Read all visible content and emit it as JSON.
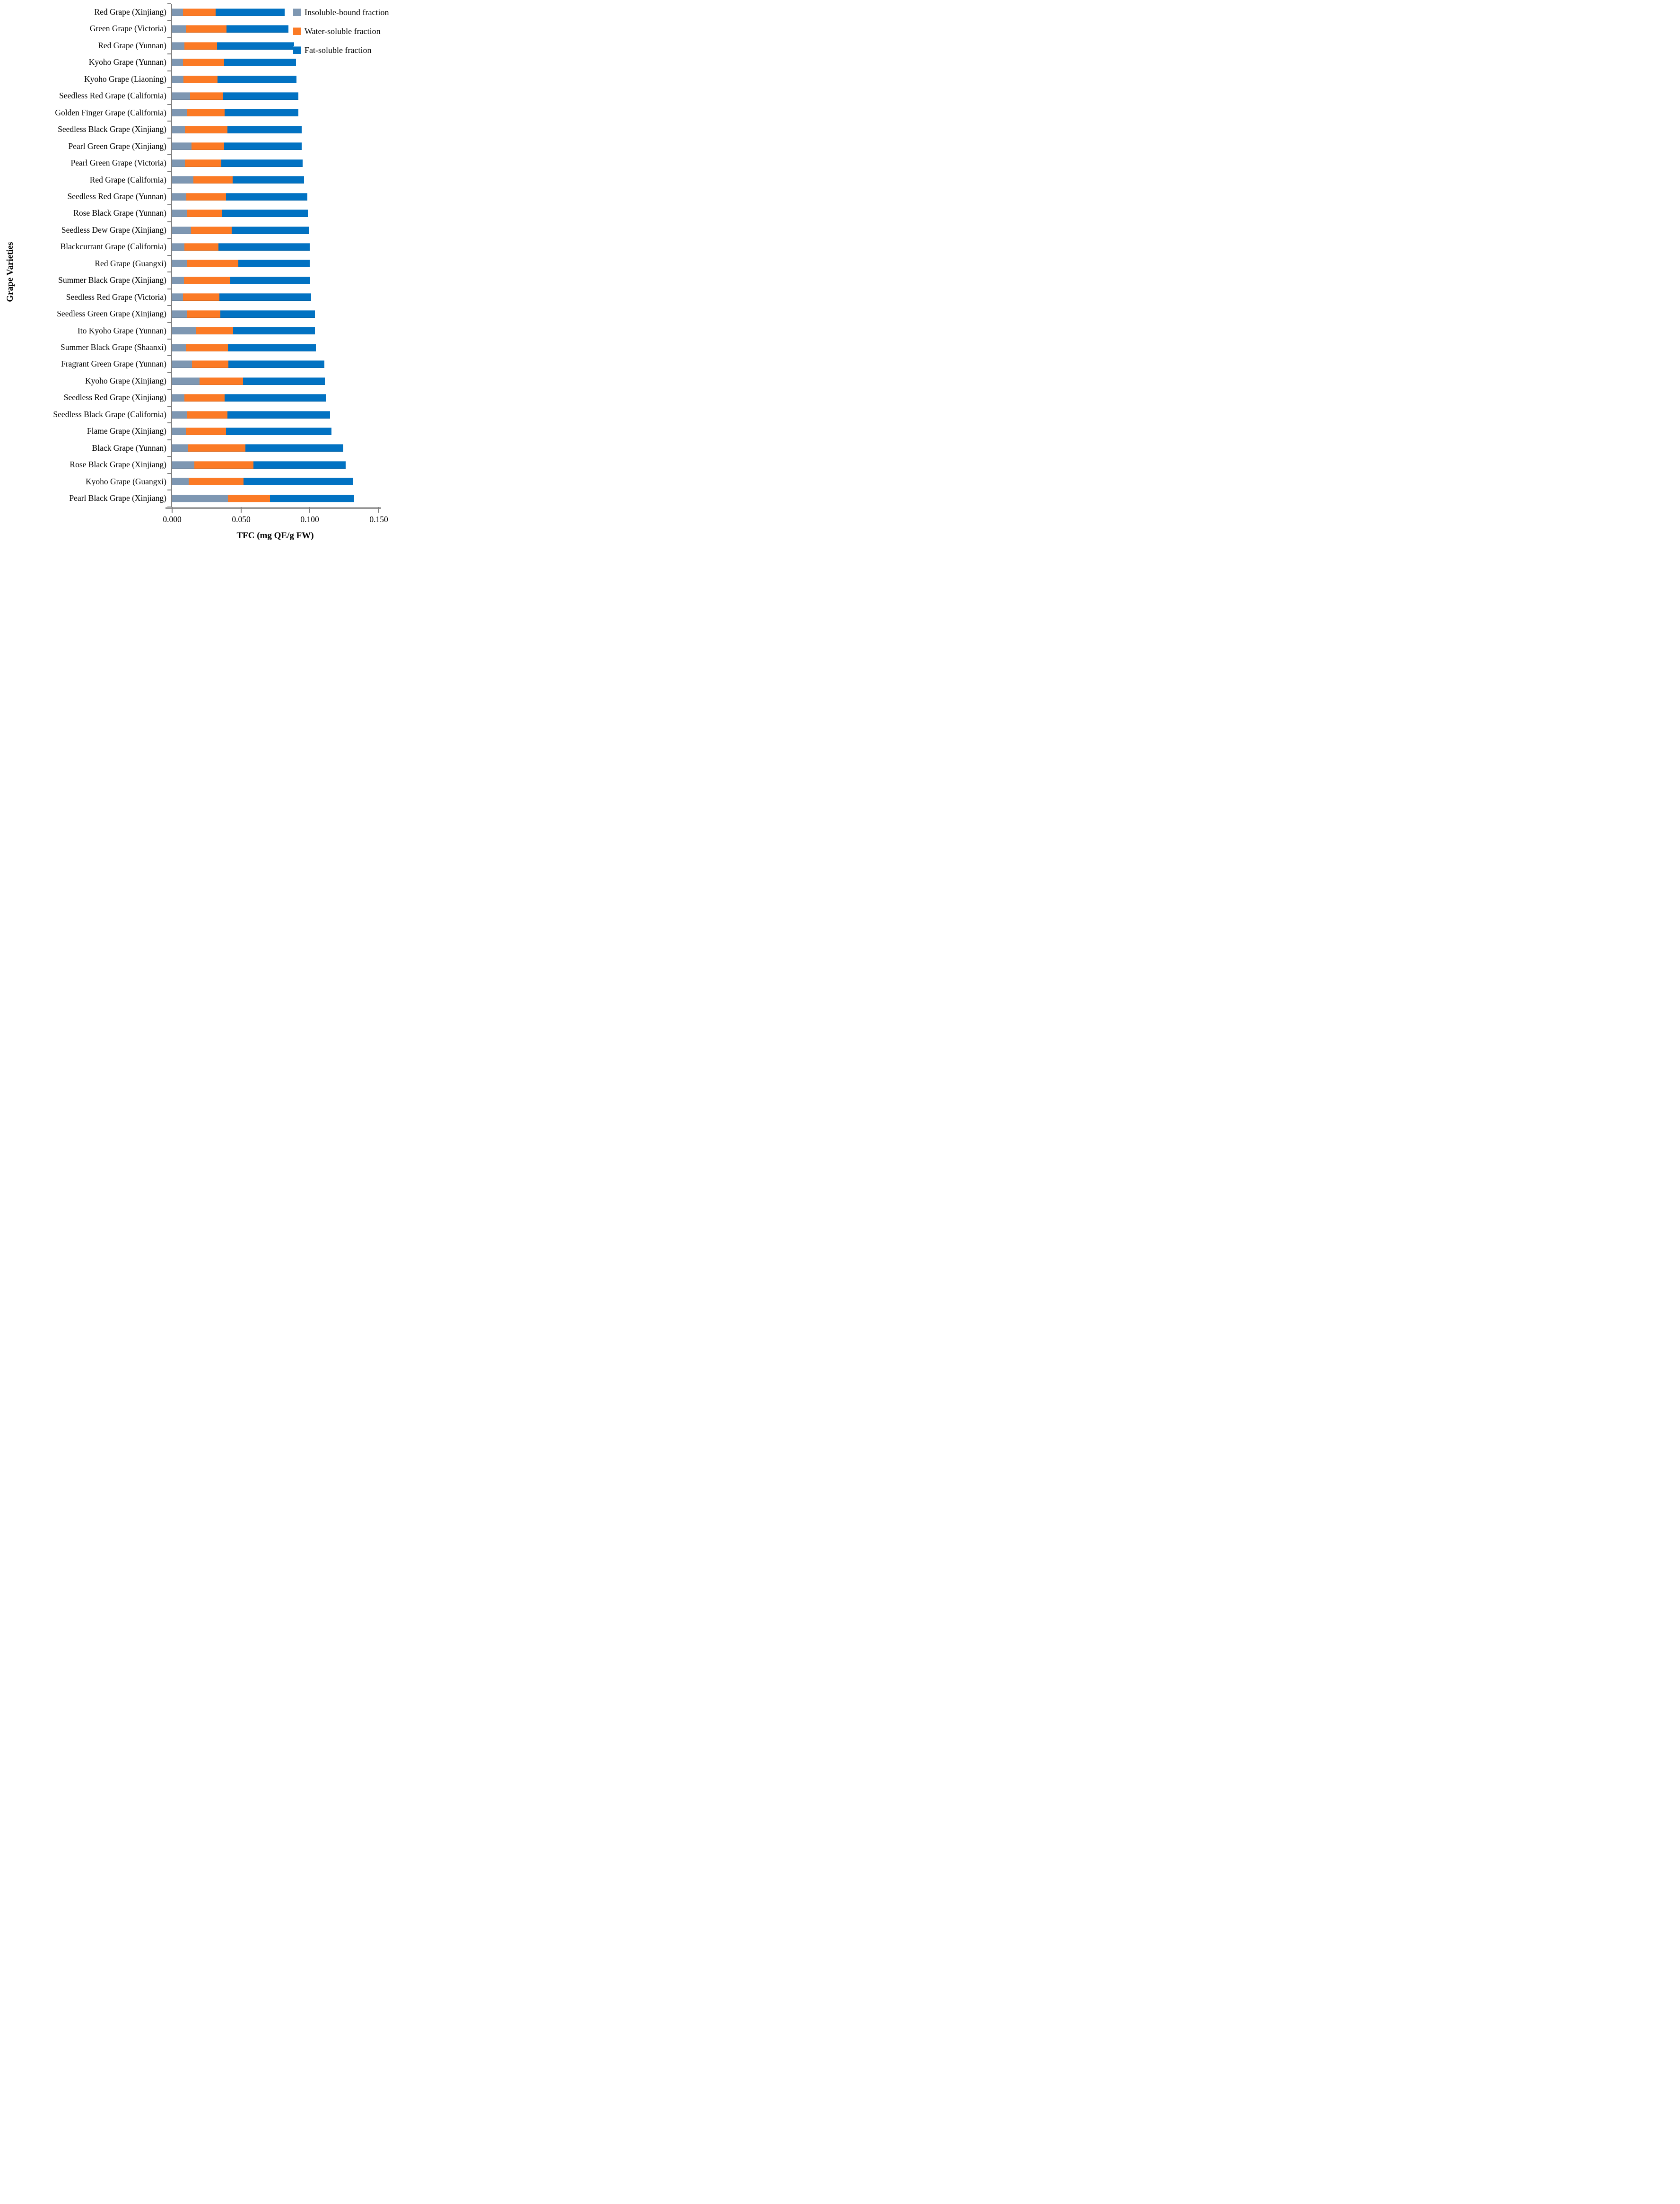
{
  "figure": {
    "x_axis_title": "TFC (mg QE/g FW)",
    "y_axis_title": "Grape Varieties"
  },
  "colors": {
    "insoluble": "#7E97B2",
    "water": "#FB7A25",
    "fat": "#0272C2",
    "axis": "#7F7F7F",
    "background": "#FFFFFF",
    "text": "#000000"
  },
  "chart_data": {
    "type": "bar",
    "orientation": "horizontal",
    "stacked": true,
    "title": "",
    "xlabel": "TFC (mg QE/g FW)",
    "ylabel": "Grape Varieties",
    "xlim": [
      0,
      0.15
    ],
    "xticks": [
      "0.000",
      "0.050",
      "0.100",
      "0.150"
    ],
    "xtick_values": [
      0,
      0.05,
      0.1,
      0.15
    ],
    "grid": false,
    "legend_position": "top-right",
    "categories": [
      "Red Grape (Xinjiang)",
      "Green Grape (Victoria)",
      "Red Grape (Yunnan)",
      "Kyoho Grape (Yunnan)",
      "Kyoho Grape (Liaoning)",
      "Seedless Red Grape (California)",
      "Golden Finger Grape (California)",
      "Seedless Black Grape (Xinjiang)",
      "Pearl Green Grape (Xinjiang)",
      "Pearl Green Grape (Victoria)",
      "Red Grape (California)",
      "Seedless Red Grape (Yunnan)",
      "Rose Black Grape (Yunnan)",
      "Seedless Dew Grape (Xinjiang)",
      "Blackcurrant Grape (California)",
      "Red Grape (Guangxi)",
      "Summer Black Grape (Xinjiang)",
      "Seedless Red Grape (Victoria)",
      "Seedless Green Grape (Xinjiang)",
      "Ito Kyoho Grape (Yunnan)",
      "Summer Black Grape (Shaanxi)",
      "Fragrant Green Grape (Yunnan)",
      "Kyoho Grape (Xinjiang)",
      "Seedless Red Grape (Xinjiang)",
      "Seedless Black Grape (California)",
      "Flame Grape (Xinjiang)",
      "Black Grape (Yunnan)",
      "Rose Black Grape (Xinjiang)",
      "Kyoho Grape (Guangxi)",
      "Pearl Black Grape (Xinjiang)"
    ],
    "series": [
      {
        "name": "Insoluble-bound fraction",
        "color": "#7E97B2",
        "values": [
          0.008,
          0.0098,
          0.0088,
          0.008,
          0.0082,
          0.013,
          0.0105,
          0.0094,
          0.0142,
          0.0091,
          0.0155,
          0.0102,
          0.0105,
          0.0136,
          0.0088,
          0.0109,
          0.0086,
          0.008,
          0.0109,
          0.0172,
          0.0098,
          0.0145,
          0.0198,
          0.0088,
          0.0106,
          0.0098,
          0.0118,
          0.016,
          0.0119,
          0.0406
        ]
      },
      {
        "name": "Water-soluble fraction",
        "color": "#FB7A25",
        "values": [
          0.0237,
          0.0297,
          0.0238,
          0.0298,
          0.0247,
          0.0241,
          0.0277,
          0.0306,
          0.0236,
          0.0267,
          0.0284,
          0.0291,
          0.0257,
          0.0297,
          0.0249,
          0.0371,
          0.0335,
          0.0262,
          0.024,
          0.0272,
          0.0306,
          0.0262,
          0.0317,
          0.0294,
          0.0296,
          0.0294,
          0.0415,
          0.0429,
          0.0398,
          0.0304
        ]
      },
      {
        "name": "Fat-soluble fraction",
        "color": "#0272C2",
        "values": [
          0.05,
          0.0451,
          0.056,
          0.0523,
          0.0574,
          0.0544,
          0.0535,
          0.0539,
          0.0563,
          0.059,
          0.052,
          0.0588,
          0.0623,
          0.0564,
          0.0662,
          0.0519,
          0.0582,
          0.0668,
          0.0687,
          0.0592,
          0.0639,
          0.0697,
          0.0595,
          0.0735,
          0.0744,
          0.0766,
          0.071,
          0.067,
          0.0799,
          0.0612
        ]
      }
    ]
  }
}
